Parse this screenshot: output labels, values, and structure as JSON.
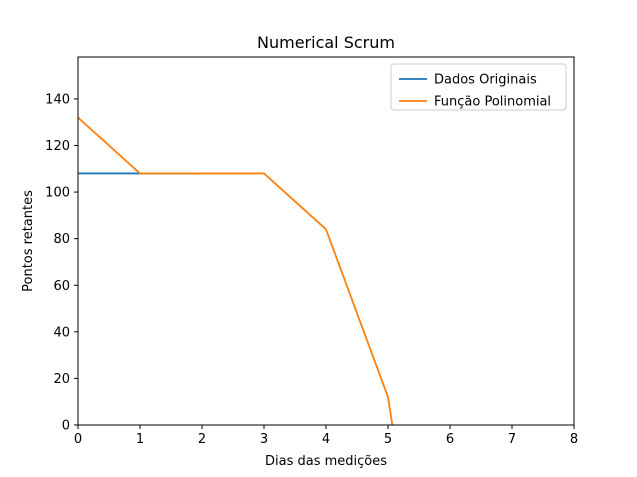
{
  "chart_data": {
    "type": "line",
    "title": "Numerical Scrum",
    "xlabel": "Dias das medições",
    "ylabel": "Pontos retantes",
    "xlim": [
      0,
      8
    ],
    "ylim": [
      0,
      158
    ],
    "xticks": [
      0,
      1,
      2,
      3,
      4,
      5,
      6,
      7,
      8
    ],
    "yticks": [
      0,
      20,
      40,
      60,
      80,
      100,
      120,
      140
    ],
    "grid": false,
    "legend_position": "top-right",
    "series": [
      {
        "name": "Dados Originais",
        "color": "#1f77b4",
        "x": [
          0,
          1,
          2
        ],
        "y": [
          108,
          108,
          108
        ]
      },
      {
        "name": "Função Polinomial",
        "color": "#ff7f0e",
        "x": [
          0,
          1,
          2,
          3,
          4,
          5,
          5.07
        ],
        "y": [
          132,
          108,
          108,
          108,
          84,
          12,
          0
        ]
      }
    ]
  }
}
